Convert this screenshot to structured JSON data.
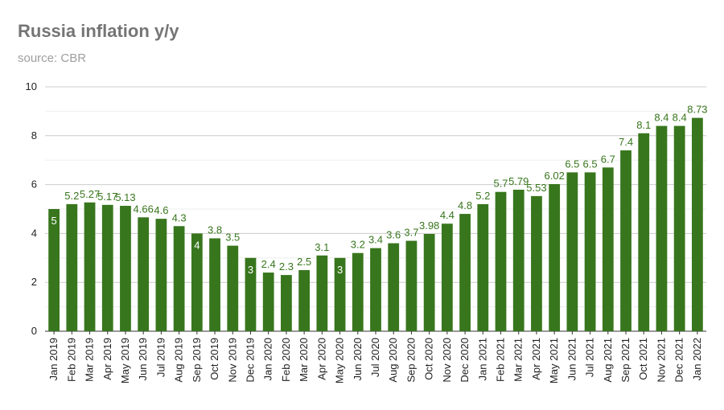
{
  "chart_data": {
    "type": "bar",
    "title": "Russia inflation y/y",
    "subtitle": "source: CBR",
    "xlabel": "",
    "ylabel": "",
    "ylim": [
      0,
      10
    ],
    "yticks": [
      0,
      2,
      4,
      6,
      8,
      10
    ],
    "grid": true,
    "legend": "none",
    "bar_color": "#38761d",
    "label_color": "#38761d",
    "inside_label_color": "#ffffff",
    "categories": [
      "Jan 2019",
      "Feb 2019",
      "Mar 2019",
      "Apr 2019",
      "May 2019",
      "Jun 2019",
      "Jul 2019",
      "Aug 2019",
      "Sep 2019",
      "Oct 2019",
      "Nov 2019",
      "Dec 2019",
      "Jan 2020",
      "Feb 2020",
      "Mar 2020",
      "Apr 2020",
      "May 2020",
      "Jun 2020",
      "Jul 2020",
      "Aug 2020",
      "Sep 2020",
      "Oct 2020",
      "Nov 2020",
      "Dec 2020",
      "Jan 2021",
      "Feb 2021",
      "Mar 2021",
      "Apr 2021",
      "May 2021",
      "Jun 2021",
      "Jul 2021",
      "Aug 2021",
      "Sep 2021",
      "Oct 2021",
      "Nov 2021",
      "Dec 2021",
      "Jan 2022"
    ],
    "values": [
      5,
      5.2,
      5.27,
      5.17,
      5.13,
      4.66,
      4.6,
      4.3,
      4,
      3.8,
      3.5,
      3,
      2.4,
      2.3,
      2.5,
      3.1,
      3,
      3.2,
      3.4,
      3.6,
      3.7,
      3.98,
      4.4,
      4.8,
      5.2,
      5.7,
      5.79,
      5.53,
      6.02,
      6.5,
      6.5,
      6.7,
      7.4,
      8.1,
      8.4,
      8.4,
      8.73
    ],
    "labels": [
      "5",
      "5.2",
      "5.27",
      "5.17",
      "5.13",
      "4.66",
      "4.6",
      "4.3",
      "4",
      "3.8",
      "3.5",
      "3",
      "2.4",
      "2.3",
      "2.5",
      "3.1",
      "3",
      "3.2",
      "3.4",
      "3.6",
      "3.7",
      "3.98",
      "4.4",
      "4.8",
      "5.2",
      "5.7",
      "5.79",
      "5.53",
      "6.02",
      "6.5",
      "6.5",
      "6.7",
      "7.4",
      "8.1",
      "8.4",
      "8.4",
      "8.73"
    ],
    "label_inside": [
      true,
      false,
      false,
      false,
      false,
      false,
      false,
      false,
      true,
      false,
      false,
      true,
      false,
      false,
      false,
      false,
      true,
      false,
      false,
      false,
      false,
      false,
      false,
      false,
      false,
      false,
      false,
      false,
      false,
      false,
      false,
      false,
      false,
      false,
      false,
      false,
      false
    ]
  }
}
